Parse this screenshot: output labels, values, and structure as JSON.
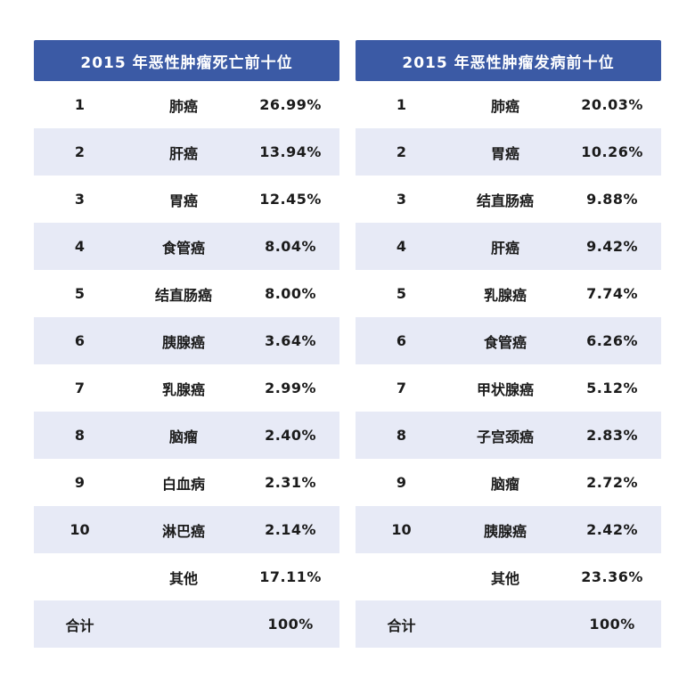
{
  "colors": {
    "header_bg": "#3b5aa5",
    "stripe_bg": "#e7eaf6",
    "text": "#1b1b1b",
    "header_text": "#ffffff"
  },
  "tables": [
    {
      "title": "2015 年恶性肿瘤死亡前十位",
      "rows": [
        {
          "rank": "1",
          "name": "肺癌",
          "pct": "26.99%"
        },
        {
          "rank": "2",
          "name": "肝癌",
          "pct": "13.94%"
        },
        {
          "rank": "3",
          "name": "胃癌",
          "pct": "12.45%"
        },
        {
          "rank": "4",
          "name": "食管癌",
          "pct": "8.04%"
        },
        {
          "rank": "5",
          "name": "结直肠癌",
          "pct": "8.00%"
        },
        {
          "rank": "6",
          "name": "胰腺癌",
          "pct": "3.64%"
        },
        {
          "rank": "7",
          "name": "乳腺癌",
          "pct": "2.99%"
        },
        {
          "rank": "8",
          "name": "脑瘤",
          "pct": "2.40%"
        },
        {
          "rank": "9",
          "name": "白血病",
          "pct": "2.31%"
        },
        {
          "rank": "10",
          "name": "淋巴癌",
          "pct": "2.14%"
        },
        {
          "rank": "",
          "name": "其他",
          "pct": "17.11%"
        },
        {
          "rank": "合计",
          "name": "",
          "pct": "100%"
        }
      ]
    },
    {
      "title": "2015 年恶性肿瘤发病前十位",
      "rows": [
        {
          "rank": "1",
          "name": "肺癌",
          "pct": "20.03%"
        },
        {
          "rank": "2",
          "name": "胃癌",
          "pct": "10.26%"
        },
        {
          "rank": "3",
          "name": "结直肠癌",
          "pct": "9.88%"
        },
        {
          "rank": "4",
          "name": "肝癌",
          "pct": "9.42%"
        },
        {
          "rank": "5",
          "name": "乳腺癌",
          "pct": "7.74%"
        },
        {
          "rank": "6",
          "name": "食管癌",
          "pct": "6.26%"
        },
        {
          "rank": "7",
          "name": "甲状腺癌",
          "pct": "5.12%"
        },
        {
          "rank": "8",
          "name": "子宫颈癌",
          "pct": "2.83%"
        },
        {
          "rank": "9",
          "name": "脑瘤",
          "pct": "2.72%"
        },
        {
          "rank": "10",
          "name": "胰腺癌",
          "pct": "2.42%"
        },
        {
          "rank": "",
          "name": "其他",
          "pct": "23.36%"
        },
        {
          "rank": "合计",
          "name": "",
          "pct": "100%"
        }
      ]
    }
  ],
  "chart_data": [
    {
      "type": "table",
      "title": "2015 年恶性肿瘤死亡前十位",
      "rows": [
        [
          "1",
          "肺癌",
          "26.99%"
        ],
        [
          "2",
          "肝癌",
          "13.94%"
        ],
        [
          "3",
          "胃癌",
          "12.45%"
        ],
        [
          "4",
          "食管癌",
          "8.04%"
        ],
        [
          "5",
          "结直肠癌",
          "8.00%"
        ],
        [
          "6",
          "胰腺癌",
          "3.64%"
        ],
        [
          "7",
          "乳腺癌",
          "2.99%"
        ],
        [
          "8",
          "脑瘤",
          "2.40%"
        ],
        [
          "9",
          "白血病",
          "2.31%"
        ],
        [
          "10",
          "淋巴癌",
          "2.14%"
        ],
        [
          "",
          "其他",
          "17.11%"
        ],
        [
          "合计",
          "",
          "100%"
        ]
      ]
    },
    {
      "type": "table",
      "title": "2015 年恶性肿瘤发病前十位",
      "rows": [
        [
          "1",
          "肺癌",
          "20.03%"
        ],
        [
          "2",
          "胃癌",
          "10.26%"
        ],
        [
          "3",
          "结直肠癌",
          "9.88%"
        ],
        [
          "4",
          "肝癌",
          "9.42%"
        ],
        [
          "5",
          "乳腺癌",
          "7.74%"
        ],
        [
          "6",
          "食管癌",
          "6.26%"
        ],
        [
          "7",
          "甲状腺癌",
          "5.12%"
        ],
        [
          "8",
          "子宫颈癌",
          "2.83%"
        ],
        [
          "9",
          "脑瘤",
          "2.72%"
        ],
        [
          "10",
          "胰腺癌",
          "2.42%"
        ],
        [
          "",
          "其他",
          "23.36%"
        ],
        [
          "合计",
          "",
          "100%"
        ]
      ]
    }
  ]
}
